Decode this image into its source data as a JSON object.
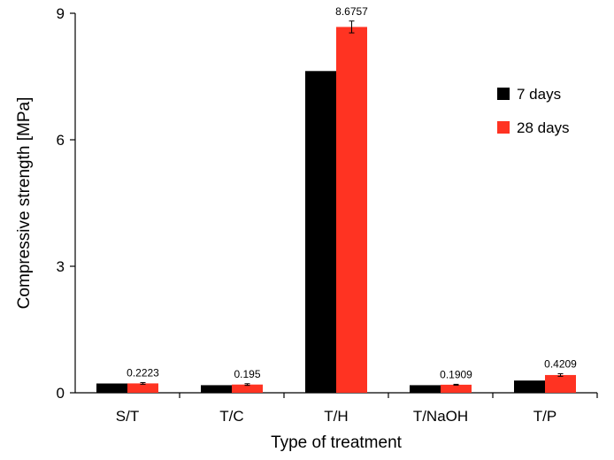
{
  "chart_data": {
    "type": "bar",
    "title": "",
    "xlabel": "Type  of treatment",
    "ylabel": "Compressive strength [MPa]",
    "ylim": [
      0,
      9
    ],
    "yticks": [
      "0",
      "3",
      "6",
      "9"
    ],
    "ytick_values": [
      0,
      3,
      6,
      9
    ],
    "categories": [
      "S/T",
      "T/C",
      "T/H",
      "T/NaOH",
      "T/P"
    ],
    "legend_position": "right, upper",
    "series": [
      {
        "name": "7 days",
        "color": "#000000",
        "values": [
          0.22,
          0.18,
          7.63,
          0.18,
          0.29
        ]
      },
      {
        "name": "28 days",
        "color": "#ff3322",
        "values": [
          0.2223,
          0.195,
          8.6757,
          0.1909,
          0.4209
        ],
        "error": [
          0.02,
          0.02,
          0.14,
          0.01,
          0.03
        ],
        "data_labels": [
          "0.2223",
          "0.195",
          "8.6757",
          "0.1909",
          "0.4209"
        ]
      }
    ]
  }
}
